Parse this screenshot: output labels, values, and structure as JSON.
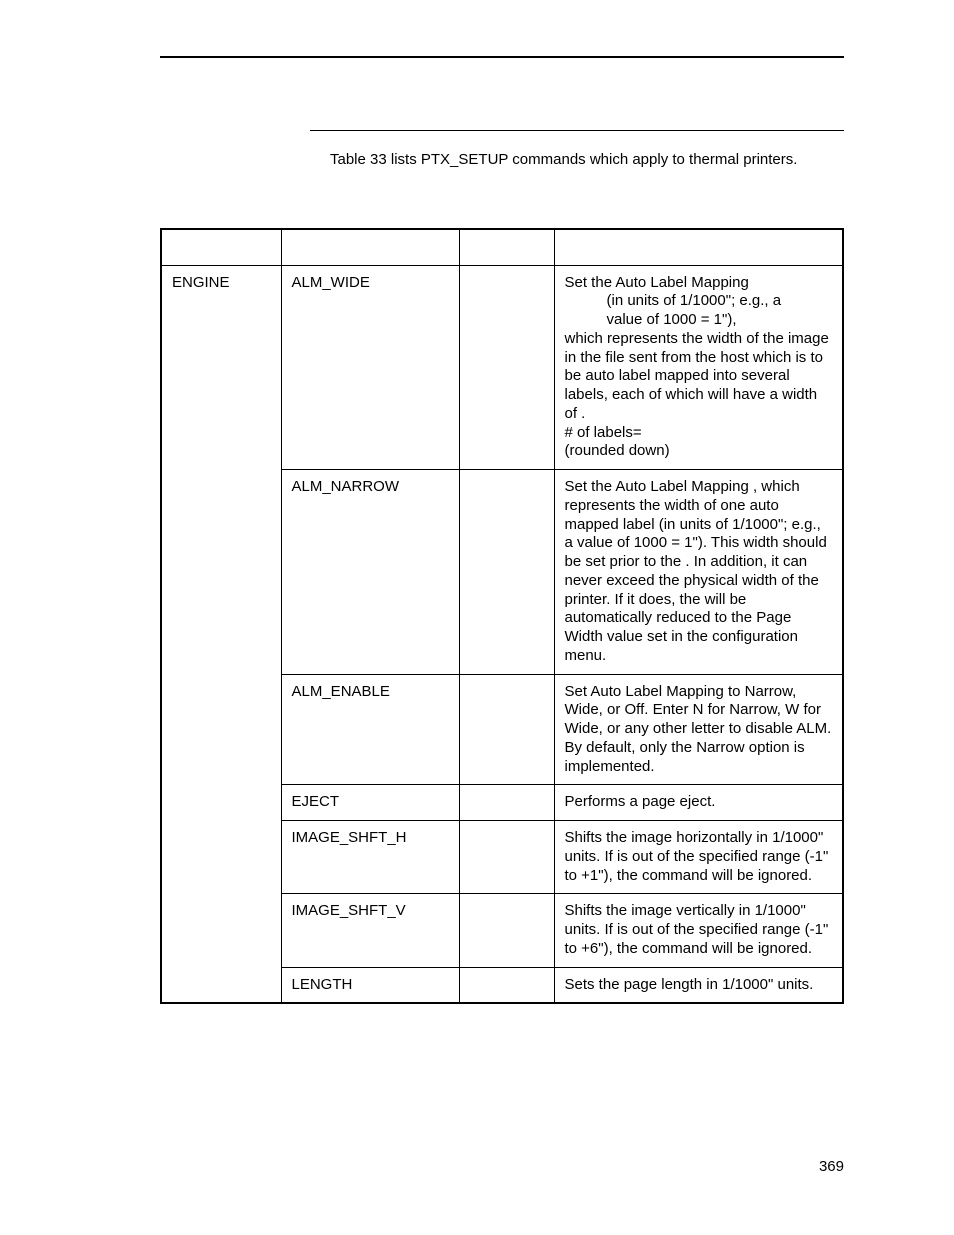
{
  "intro": "Table 33 lists PTX_SETUP commands which apply to thermal printers.",
  "page_number": "369",
  "table": {
    "headers": [
      "",
      "",
      "",
      ""
    ],
    "rows": [
      {
        "command": "ENGINE",
        "sub": [
          {
            "sub_name": "ALM_WIDE",
            "param": "",
            "desc_lines": [
              "Set the Auto Label Mapping",
              "        (in units of 1/1000\"; e.g., a",
              "            value of 1000 = 1\"),",
              "which represents the width of the image in the file sent from the host which is to be auto label mapped into several labels, each of which will have a width of                   .",
              "# of labels=",
              "(rounded down)"
            ]
          },
          {
            "sub_name": "ALM_NARROW",
            "param": "",
            "desc_lines": [
              "Set the Auto Label Mapping             , which represents the width of one auto mapped label (in units of 1/1000\"; e.g., a                     value of 1000 = 1\"). This width should be set prior to the                  . In addition, it can never exceed the physical width of the printer. If it does, the                       will be automatically reduced to the Page Width value set in the configuration menu."
            ]
          },
          {
            "sub_name": "ALM_ENABLE",
            "param": "",
            "desc_lines": [
              "Set Auto Label Mapping to Narrow, Wide, or Off. Enter N for Narrow, W for Wide, or any other letter to disable ALM. By default, only the Narrow option is implemented."
            ]
          },
          {
            "sub_name": "EJECT",
            "param": "",
            "desc_lines": [
              "Performs a page eject."
            ]
          },
          {
            "sub_name": "IMAGE_SHFT_H",
            "param": "",
            "desc_lines": [
              "Shifts the image           horizontally in 1/1000\" units. If            is out of the specified range (-1\" to +1\"), the command will be ignored."
            ]
          },
          {
            "sub_name": "IMAGE_SHFT_V",
            "param": "",
            "desc_lines": [
              "Shifts the image            vertically in 1/1000\" units. If           is out of the specified range (-1\" to +6\"), the command will be ignored."
            ]
          },
          {
            "sub_name": "LENGTH",
            "param": "",
            "desc_lines": [
              "Sets the page length in 1/1000\" units."
            ]
          }
        ]
      }
    ]
  }
}
